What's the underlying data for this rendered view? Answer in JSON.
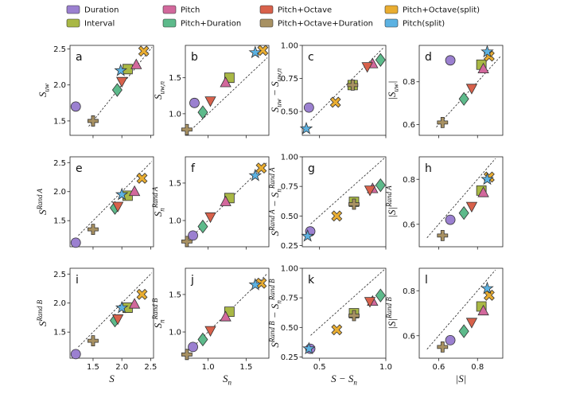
{
  "legend": {
    "series": [
      {
        "name": "Duration",
        "color": "#9b80d0",
        "marker": "circle"
      },
      {
        "name": "Interval",
        "color": "#a9b845",
        "marker": "square"
      },
      {
        "name": "Pitch",
        "color": "#d2689c",
        "marker": "triangle-up"
      },
      {
        "name": "Pitch+Duration",
        "color": "#5dba8b",
        "marker": "diamond"
      },
      {
        "name": "Pitch+Octave",
        "color": "#d8614b",
        "marker": "triangle-down"
      },
      {
        "name": "Pitch+Octave+Duration",
        "color": "#a89162",
        "marker": "plus"
      },
      {
        "name": "Pitch+Octave(split)",
        "color": "#e9ad31",
        "marker": "x"
      },
      {
        "name": "Pitch(split)",
        "color": "#5cb2e2",
        "marker": "star"
      }
    ]
  },
  "chart_data": [
    {
      "type": "scatter",
      "label": "a",
      "diagonal": true,
      "xlim": [
        1.1,
        2.55
      ],
      "ylim": [
        1.3,
        2.55
      ],
      "xticks": [
        1.5,
        {
          "value": 2,
          "label": "2.0"
        },
        2.5
      ],
      "yticks": [
        1.5,
        {
          "value": 2,
          "label": "2.0"
        },
        2.5
      ],
      "xtick_labels": false,
      "ylabel": [
        {
          "text": "S"
        },
        {
          "text": "uw",
          "pos": "sub"
        }
      ],
      "x": [
        1.2,
        2.1,
        2.25,
        1.92,
        2.0,
        1.5,
        2.38,
        1.98
      ],
      "y": [
        1.7,
        2.22,
        2.28,
        1.93,
        2.05,
        1.5,
        2.47,
        2.2
      ]
    },
    {
      "type": "scatter",
      "label": "b",
      "diagonal": true,
      "xlim": [
        0.7,
        1.8
      ],
      "ylim": [
        0.7,
        1.95
      ],
      "xticks": [
        {
          "value": 1,
          "label": "1.0"
        },
        1.5
      ],
      "yticks": [
        {
          "value": 1,
          "label": "1.0"
        },
        1.5
      ],
      "xtick_labels": false,
      "ylabel": [
        {
          "text": "S"
        },
        {
          "text": "uw,n",
          "pos": "sub"
        }
      ],
      "x": [
        0.82,
        1.28,
        1.23,
        0.93,
        1.03,
        0.72,
        1.72,
        1.62
      ],
      "y": [
        1.15,
        1.5,
        1.43,
        1.02,
        1.18,
        0.78,
        1.88,
        1.85
      ]
    },
    {
      "type": "scatter",
      "label": "c",
      "diagonal": true,
      "xlim": [
        0.37,
        1.0
      ],
      "ylim": [
        0.32,
        1.0
      ],
      "xticks": [
        0.5,
        {
          "value": 1,
          "label": "1.0"
        }
      ],
      "yticks": [
        {
          "value": 0.5,
          "label": "0.50"
        },
        0.75,
        {
          "value": 1,
          "label": "1.00"
        }
      ],
      "xtick_labels": false,
      "ylabel": [
        {
          "text": "S"
        },
        {
          "text": "uw",
          "pos": "sub"
        },
        {
          "text": " − S"
        },
        {
          "text": "uw,n",
          "pos": "sub"
        }
      ],
      "x": [
        0.42,
        0.75,
        0.9,
        0.96,
        0.86,
        0.75,
        0.62,
        0.4
      ],
      "y": [
        0.53,
        0.7,
        0.86,
        0.89,
        0.84,
        0.7,
        0.57,
        0.37
      ]
    },
    {
      "type": "scatter",
      "label": "d",
      "diagonal": true,
      "xlim": [
        0.5,
        0.93
      ],
      "ylim": [
        0.55,
        0.97
      ],
      "xticks": [
        0.6,
        0.8
      ],
      "yticks": [
        0.6,
        0.8
      ],
      "xtick_labels": false,
      "ylabel": [
        {
          "text": "|S"
        },
        {
          "text": "uw",
          "pos": "sub"
        },
        {
          "text": "|"
        }
      ],
      "x": [
        0.66,
        0.82,
        0.83,
        0.73,
        0.77,
        0.62,
        0.86,
        0.85
      ],
      "y": [
        0.9,
        0.88,
        0.86,
        0.72,
        0.77,
        0.61,
        0.92,
        0.94
      ]
    },
    {
      "type": "scatter",
      "label": "e",
      "diagonal": true,
      "xlim": [
        1.1,
        2.55
      ],
      "ylim": [
        1.05,
        2.6
      ],
      "xticks": [
        1.5,
        {
          "value": 2,
          "label": "2.0"
        },
        2.5
      ],
      "yticks": [
        1.5,
        {
          "value": 2,
          "label": "2.0"
        },
        2.5
      ],
      "xtick_labels": false,
      "ylabel": [
        {
          "text": "S"
        },
        {
          "text": "Rand A",
          "pos": "sup"
        }
      ],
      "x": [
        1.2,
        2.1,
        2.22,
        1.88,
        1.93,
        1.5,
        2.35,
        2.0
      ],
      "y": [
        1.12,
        1.93,
        2.0,
        1.72,
        1.75,
        1.35,
        2.23,
        1.95
      ]
    },
    {
      "type": "scatter",
      "label": "f",
      "diagonal": true,
      "xlim": [
        0.7,
        1.8
      ],
      "ylim": [
        0.65,
        1.85
      ],
      "xticks": [
        {
          "value": 1,
          "label": "1.0"
        },
        1.5
      ],
      "yticks": [
        {
          "value": 1,
          "label": "1.0"
        },
        1.5
      ],
      "xtick_labels": false,
      "ylabel": [
        {
          "text": "S"
        },
        {
          "text": "n",
          "pos": "sub"
        },
        {
          "text": "Rand A",
          "pos": "sup"
        }
      ],
      "x": [
        0.8,
        1.28,
        1.23,
        0.93,
        1.03,
        0.72,
        1.7,
        1.62
      ],
      "y": [
        0.8,
        1.3,
        1.25,
        0.92,
        1.05,
        0.72,
        1.7,
        1.6
      ]
    },
    {
      "type": "scatter",
      "label": "g",
      "diagonal": true,
      "xlim": [
        0.37,
        1.0
      ],
      "ylim": [
        0.24,
        1.0
      ],
      "xticks": [
        0.5,
        {
          "value": 1,
          "label": "1.0"
        }
      ],
      "yticks": [
        0.25,
        {
          "value": 0.5,
          "label": "0.50"
        },
        0.75,
        {
          "value": 1,
          "label": "1.00"
        }
      ],
      "xtick_labels": false,
      "ylabel": [
        {
          "text": "S"
        },
        {
          "text": "Rand A",
          "pos": "sup"
        },
        {
          "text": " − S"
        },
        {
          "text": "n",
          "pos": "sub"
        },
        {
          "text": "Rand A",
          "pos": "sup"
        }
      ],
      "x": [
        0.43,
        0.76,
        0.9,
        0.96,
        0.88,
        0.76,
        0.63,
        0.41
      ],
      "y": [
        0.37,
        0.62,
        0.73,
        0.76,
        0.72,
        0.6,
        0.5,
        0.33
      ]
    },
    {
      "type": "scatter",
      "label": "h",
      "diagonal": true,
      "xlim": [
        0.5,
        0.93
      ],
      "ylim": [
        0.5,
        0.9
      ],
      "xticks": [
        0.6,
        0.8
      ],
      "yticks": [
        0.6,
        0.8
      ],
      "xtick_labels": false,
      "ylabel": [
        {
          "text": "|S|"
        },
        {
          "text": "Rand A",
          "pos": "sup"
        }
      ],
      "x": [
        0.66,
        0.82,
        0.83,
        0.73,
        0.77,
        0.62,
        0.86,
        0.85
      ],
      "y": [
        0.62,
        0.75,
        0.74,
        0.65,
        0.68,
        0.55,
        0.81,
        0.8
      ]
    },
    {
      "type": "scatter",
      "label": "i",
      "diagonal": true,
      "xlim": [
        1.1,
        2.55
      ],
      "ylim": [
        1.05,
        2.6
      ],
      "xticks": [
        1.5,
        {
          "value": 2,
          "label": "2.0"
        },
        2.5
      ],
      "yticks": [
        1.5,
        {
          "value": 2,
          "label": "2.0"
        },
        2.5
      ],
      "xtick_labels": true,
      "xlabel": [
        {
          "text": "S"
        }
      ],
      "ylabel": [
        {
          "text": "S"
        },
        {
          "text": "Rand B",
          "pos": "sup"
        }
      ],
      "x": [
        1.2,
        2.1,
        2.22,
        1.88,
        1.93,
        1.5,
        2.35,
        2.0
      ],
      "y": [
        1.12,
        1.92,
        1.98,
        1.7,
        1.73,
        1.35,
        2.15,
        1.92
      ]
    },
    {
      "type": "scatter",
      "label": "j",
      "diagonal": true,
      "xlim": [
        0.7,
        1.8
      ],
      "ylim": [
        0.65,
        1.85
      ],
      "xticks": [
        {
          "value": 1,
          "label": "1.0"
        },
        1.5
      ],
      "yticks": [
        {
          "value": 1,
          "label": "1.0"
        },
        1.5
      ],
      "xtick_labels": true,
      "xlabel": [
        {
          "text": "S"
        },
        {
          "text": "n",
          "pos": "sub"
        }
      ],
      "ylabel": [
        {
          "text": "S"
        },
        {
          "text": "n",
          "pos": "sub"
        },
        {
          "text": "Rand B",
          "pos": "sup"
        }
      ],
      "x": [
        0.8,
        1.28,
        1.23,
        0.93,
        1.03,
        0.72,
        1.7,
        1.62
      ],
      "y": [
        0.8,
        1.27,
        1.2,
        0.9,
        1.02,
        0.7,
        1.65,
        1.63
      ]
    },
    {
      "type": "scatter",
      "label": "k",
      "diagonal": true,
      "xlim": [
        0.37,
        1.0
      ],
      "ylim": [
        0.24,
        1.0
      ],
      "xticks": [
        0.5,
        {
          "value": 1,
          "label": "1.0"
        }
      ],
      "yticks": [
        0.25,
        {
          "value": 0.5,
          "label": "0.50"
        },
        0.75,
        {
          "value": 1,
          "label": "1.00"
        }
      ],
      "xtick_labels": true,
      "xlabel": [
        {
          "text": "S − S"
        },
        {
          "text": "n",
          "pos": "sub"
        }
      ],
      "ylabel": [
        {
          "text": "S"
        },
        {
          "text": "Rand B",
          "pos": "sup"
        },
        {
          "text": " − S"
        },
        {
          "text": "n",
          "pos": "sub"
        },
        {
          "text": "Rand B",
          "pos": "sup"
        }
      ],
      "x": [
        0.43,
        0.76,
        0.9,
        0.96,
        0.88,
        0.76,
        0.63,
        0.42
      ],
      "y": [
        0.32,
        0.62,
        0.72,
        0.77,
        0.72,
        0.6,
        0.48,
        0.32
      ]
    },
    {
      "type": "scatter",
      "label": "l",
      "diagonal": true,
      "xlim": [
        0.5,
        0.93
      ],
      "ylim": [
        0.5,
        0.9
      ],
      "xticks": [
        0.6,
        0.8
      ],
      "yticks": [
        0.6,
        0.8
      ],
      "xtick_labels": true,
      "xlabel": [
        {
          "text": "|S|"
        }
      ],
      "ylabel": [
        {
          "text": "|S|"
        },
        {
          "text": "Rand B",
          "pos": "sup"
        }
      ],
      "x": [
        0.66,
        0.82,
        0.83,
        0.73,
        0.77,
        0.62,
        0.86,
        0.85
      ],
      "y": [
        0.58,
        0.73,
        0.71,
        0.62,
        0.66,
        0.55,
        0.78,
        0.81
      ]
    }
  ]
}
